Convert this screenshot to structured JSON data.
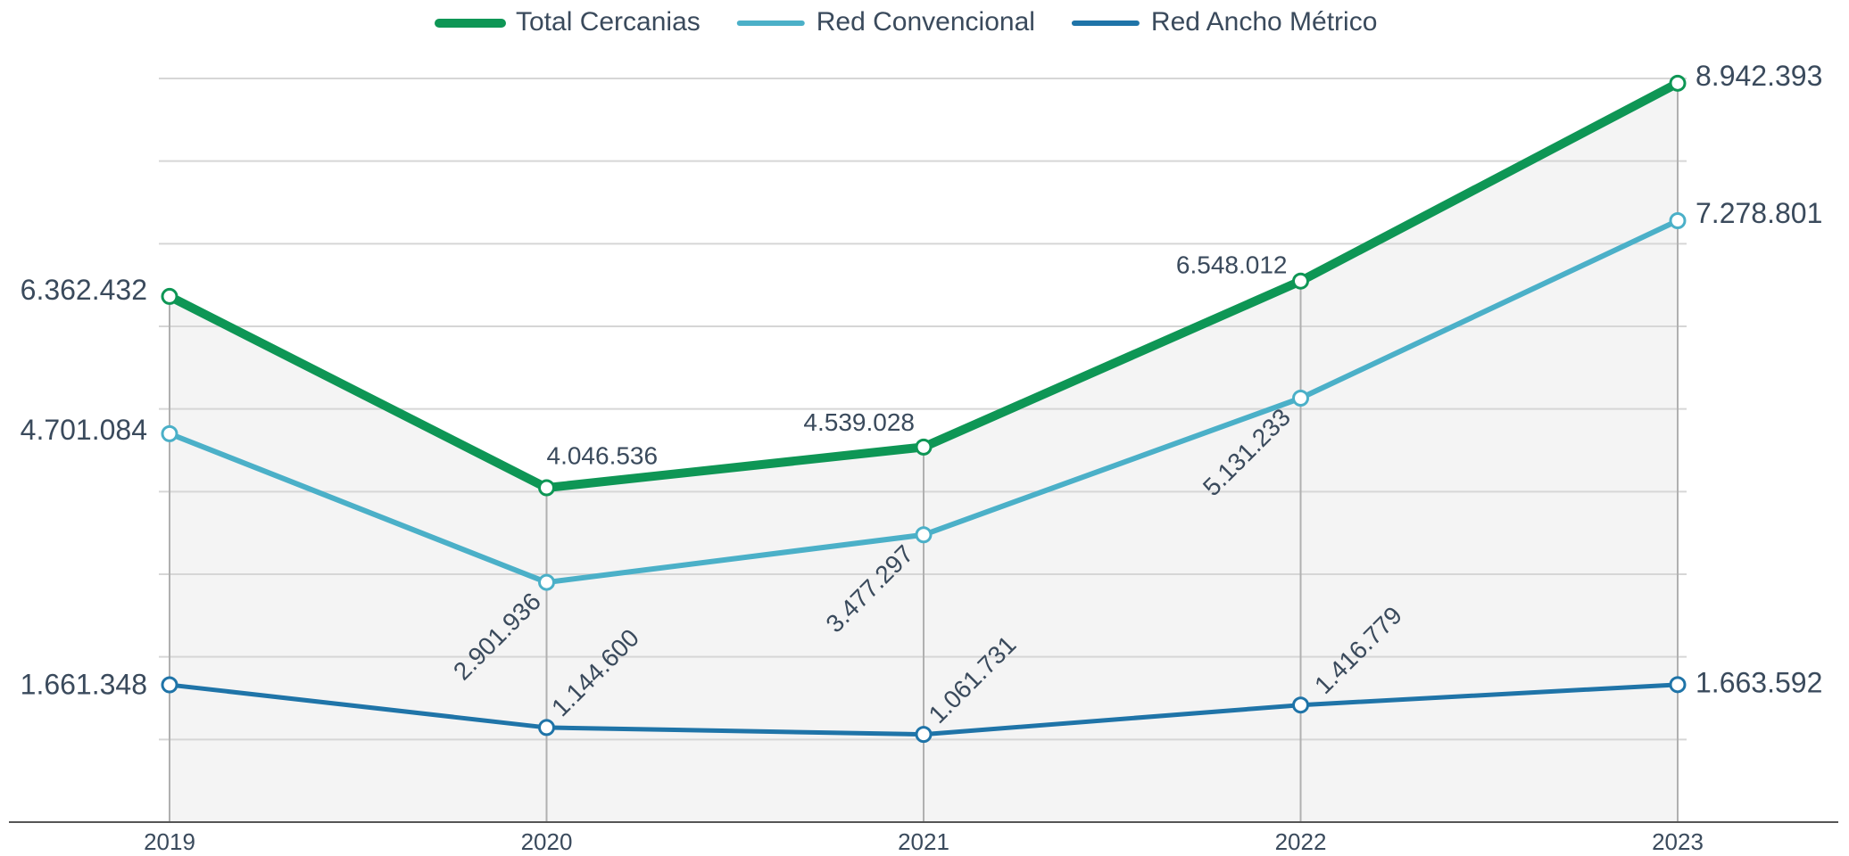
{
  "chart_data": {
    "type": "line",
    "categories": [
      "2019",
      "2020",
      "2021",
      "2022",
      "2023"
    ],
    "series": [
      {
        "name": "Total Cercanias",
        "color": "#0e9655",
        "values": [
          6362432,
          4046536,
          4539028,
          6548012,
          8942393
        ],
        "value_labels": [
          "6.362.432",
          "4.046.536",
          "4.539.028",
          "6.548.012",
          "8.942.393"
        ]
      },
      {
        "name": "Red Convencional",
        "color": "#4bb0c8",
        "values": [
          4701084,
          2901936,
          3477297,
          5131233,
          7278801
        ],
        "value_labels": [
          "4.701.084",
          "2.901.936",
          "3.477.297",
          "5.131.233",
          "7.278.801"
        ]
      },
      {
        "name": "Red Ancho Métrico",
        "color": "#1f74a8",
        "values": [
          1661348,
          1144600,
          1061731,
          1416779,
          1663592
        ],
        "value_labels": [
          "1.661.348",
          "1.144.600",
          "1.061.731",
          "1.416.779",
          "1.663.592"
        ]
      }
    ],
    "ylim": [
      0,
      9000000
    ],
    "yticks": [
      0,
      1000000,
      2000000,
      3000000,
      4000000,
      5000000,
      6000000,
      7000000,
      8000000,
      9000000
    ],
    "grid": true,
    "legend": "top"
  }
}
